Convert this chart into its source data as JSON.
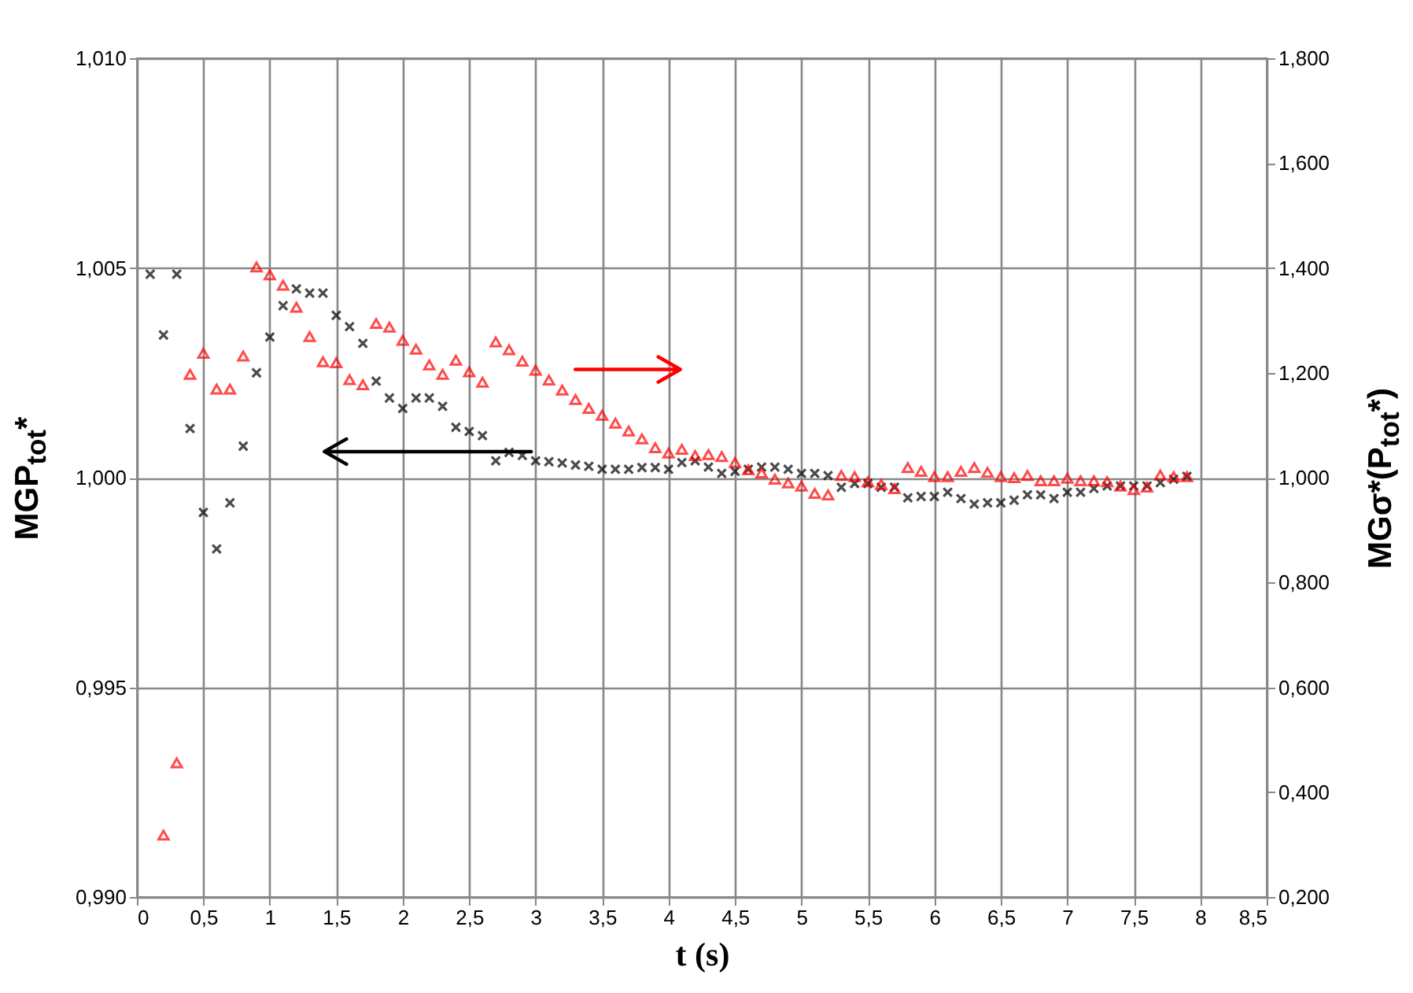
{
  "chart_data": {
    "type": "scatter",
    "xlabel": "t (s)",
    "ylabel": "MGP$_{tot}$*",
    "y2label": "MGσ*(P$_{tot}$*)",
    "xlim": [
      0,
      8.5
    ],
    "xticks": [
      0,
      {
        "value": 0.5,
        "label": "0,5"
      },
      1,
      {
        "value": 1.5,
        "label": "1,5"
      },
      2,
      {
        "value": 2.5,
        "label": "2,5"
      },
      3,
      {
        "value": 3.5,
        "label": "3,5"
      },
      4,
      {
        "value": 4.5,
        "label": "4,5"
      },
      5,
      {
        "value": 5.5,
        "label": "5,5"
      },
      6,
      {
        "value": 6.5,
        "label": "6,5"
      },
      7,
      {
        "value": 7.5,
        "label": "7,5"
      },
      8,
      {
        "value": 8.5,
        "label": "8,5"
      }
    ],
    "ylim": [
      0.99,
      1.01
    ],
    "yticks": [
      {
        "value": 0.99,
        "label": "0,990"
      },
      {
        "value": 0.995,
        "label": "0,995"
      },
      {
        "value": 1.0,
        "label": "1,000"
      },
      {
        "value": 1.005,
        "label": "1,005"
      },
      {
        "value": 1.01,
        "label": "1,010"
      }
    ],
    "y2lim": [
      0.2,
      1.8
    ],
    "y2ticks": [
      {
        "value": 0.2,
        "label": "0,200"
      },
      {
        "value": 0.4,
        "label": "0,400"
      },
      {
        "value": 0.6,
        "label": "0,600"
      },
      {
        "value": 0.8,
        "label": "0,800"
      },
      {
        "value": 1.0,
        "label": "1,000"
      },
      {
        "value": 1.2,
        "label": "1,200"
      },
      {
        "value": 1.4,
        "label": "1,400"
      },
      {
        "value": 1.6,
        "label": "1,600"
      },
      {
        "value": 1.8,
        "label": "1,800"
      }
    ],
    "grid": true,
    "series": [
      {
        "color": "#000000",
        "marker": "cross",
        "x": [
          0.1,
          0.2,
          0.3,
          0.4,
          0.5,
          0.6,
          0.7,
          0.8,
          0.9,
          1.0,
          1.1,
          1.2,
          1.3,
          1.4,
          1.5,
          1.6,
          1.7,
          1.8,
          1.9,
          2.0,
          2.1,
          2.2,
          2.3,
          2.4,
          2.5,
          2.6,
          2.7,
          2.8,
          2.9,
          3.0,
          3.1,
          3.2,
          3.3,
          3.4,
          3.5,
          3.6,
          3.7,
          3.8,
          3.9,
          4.0,
          4.1,
          4.2,
          4.3,
          4.4,
          4.5,
          4.6,
          4.7,
          4.8,
          4.9,
          5.0,
          5.1,
          5.2,
          5.3,
          5.4,
          5.5,
          5.6,
          5.7,
          5.8,
          5.9,
          6.0,
          6.1,
          6.2,
          6.3,
          6.4,
          6.5,
          6.6,
          6.7,
          6.8,
          6.9,
          7.0,
          7.1,
          7.2,
          7.3,
          7.4,
          7.5,
          7.6,
          7.7,
          7.8,
          7.9
        ],
        "values": [
          1.00485,
          1.0034,
          1.00485,
          1.00117,
          0.99917,
          0.9983,
          0.9994,
          1.00075,
          1.0025,
          1.00335,
          1.0041,
          1.0045,
          1.0044,
          1.0044,
          1.00387,
          1.0036,
          1.0032,
          1.0023,
          1.0019,
          1.00165,
          1.0019,
          1.0019,
          1.0017,
          1.0012,
          1.0011,
          1.001,
          1.0004,
          1.0006,
          1.00053,
          1.0004,
          1.00038,
          1.00035,
          1.0003,
          1.00027,
          1.0002,
          1.0002,
          1.0002,
          1.00024,
          1.00024,
          1.0002,
          1.00036,
          1.0004,
          1.00025,
          1.0001,
          1.00015,
          1.0002,
          1.00025,
          1.00025,
          1.0002,
          1.0001,
          1.0001,
          1.00005,
          0.99977,
          0.99986,
          0.99986,
          0.99977,
          0.99977,
          0.99952,
          0.99955,
          0.99955,
          0.99965,
          0.9995,
          0.99937,
          0.9994,
          0.9994,
          0.99946,
          0.99959,
          0.99959,
          0.9995,
          0.99965,
          0.99965,
          0.99974,
          0.9998,
          0.9998,
          0.9998,
          0.9998,
          0.99988,
          0.99996,
          1.00003
        ]
      },
      {
        "color": "#ff0000",
        "marker": "triangle",
        "axis": "y2",
        "x": [
          0.2,
          0.3,
          0.4,
          0.5,
          0.6,
          0.7,
          0.8,
          0.9,
          1.0,
          1.1,
          1.2,
          1.3,
          1.4,
          1.5,
          1.6,
          1.7,
          1.8,
          1.9,
          2.0,
          2.1,
          2.2,
          2.3,
          2.4,
          2.5,
          2.6,
          2.7,
          2.8,
          2.9,
          3.0,
          3.1,
          3.2,
          3.3,
          3.4,
          3.5,
          3.6,
          3.7,
          3.8,
          3.9,
          4.0,
          4.1,
          4.2,
          4.3,
          4.4,
          4.5,
          4.6,
          4.7,
          4.8,
          4.9,
          5.0,
          5.1,
          5.2,
          5.3,
          5.4,
          5.5,
          5.6,
          5.7,
          5.8,
          5.9,
          6.0,
          6.1,
          6.2,
          6.3,
          6.4,
          6.5,
          6.6,
          6.7,
          6.8,
          6.9,
          7.0,
          7.1,
          7.2,
          7.3,
          7.4,
          7.5,
          7.6,
          7.7,
          7.8,
          7.9
        ],
        "values": [
          0.318,
          0.456,
          1.197,
          1.237,
          1.169,
          1.169,
          1.232,
          1.402,
          1.387,
          1.367,
          1.325,
          1.269,
          1.221,
          1.219,
          1.187,
          1.177,
          1.294,
          1.287,
          1.262,
          1.245,
          1.215,
          1.197,
          1.224,
          1.202,
          1.182,
          1.259,
          1.244,
          1.222,
          1.205,
          1.186,
          1.167,
          1.149,
          1.132,
          1.119,
          1.104,
          1.089,
          1.074,
          1.057,
          1.047,
          1.054,
          1.042,
          1.044,
          1.04,
          1.029,
          1.015,
          1.009,
          0.997,
          0.99,
          0.984,
          0.97,
          0.967,
          1.004,
          1.002,
          0.992,
          0.987,
          0.979,
          1.019,
          1.012,
          1.002,
          1.002,
          1.012,
          1.019,
          1.01,
          1.002,
          1.0,
          1.004,
          0.994,
          0.994,
          0.999,
          0.994,
          0.994,
          0.992,
          0.984,
          0.977,
          0.982,
          1.005,
          1.002,
          1.002
        ]
      }
    ]
  }
}
